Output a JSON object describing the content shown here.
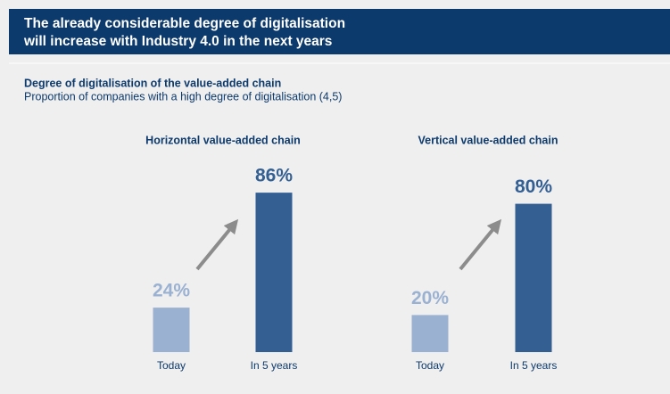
{
  "header": {
    "title": [
      "The already considerable degree of digitalisation",
      "will increase with Industry 4.0 in the next years"
    ]
  },
  "heading": "Degree of digitalisation of the value-added chain",
  "subheading": "Proportion of companies with a high degree of digitalisation (4,5)",
  "chart_data": [
    {
      "type": "bar",
      "title": "Horizontal value-added chain",
      "categories": [
        "Today",
        "In 5 years"
      ],
      "values": [
        24,
        86
      ],
      "value_labels": [
        "24%",
        "86%"
      ],
      "colors": [
        "#9bb1d2",
        "#335f93"
      ]
    },
    {
      "type": "bar",
      "title": "Vertical value-added chain",
      "categories": [
        "Today",
        "In 5 years"
      ],
      "values": [
        20,
        80
      ],
      "value_labels": [
        "20%",
        "80%"
      ],
      "colors": [
        "#9bb1d2",
        "#335f93"
      ]
    }
  ]
}
